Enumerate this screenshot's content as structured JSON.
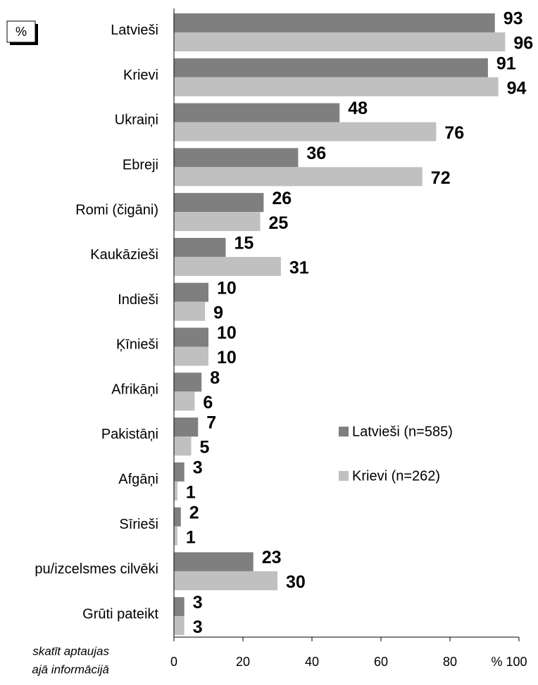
{
  "chart_data": {
    "type": "bar",
    "orientation": "horizontal",
    "unit_label": "%",
    "categories": [
      "Latvieši",
      "Krievi",
      "Ukraiņi",
      "Ebreji",
      "Romi (čigāni)",
      "Kaukāzieši",
      "Indieši",
      "Ķīnieši",
      "Afrikāņi",
      "Pakistāņi",
      "Afgāņi",
      "Sīrieši",
      "pu/izcelsmes cilvēki",
      "Grūti pateikt"
    ],
    "series": [
      {
        "name": "Latvieši (n=585)",
        "color": "#7f7f7f",
        "values": [
          93,
          91,
          48,
          36,
          26,
          15,
          10,
          10,
          8,
          7,
          3,
          2,
          23,
          3
        ]
      },
      {
        "name": "Krievi (n=262)",
        "color": "#c0c0c0",
        "values": [
          96,
          94,
          76,
          72,
          25,
          31,
          9,
          10,
          6,
          5,
          1,
          1,
          30,
          3
        ]
      }
    ],
    "xlim": [
      0,
      100
    ],
    "xticks": [
      0,
      20,
      40,
      60,
      80,
      {
        "value": 100,
        "label": "% 100"
      }
    ],
    "notes": [
      "skatīt aptaujas",
      "ajā informācijā"
    ]
  }
}
